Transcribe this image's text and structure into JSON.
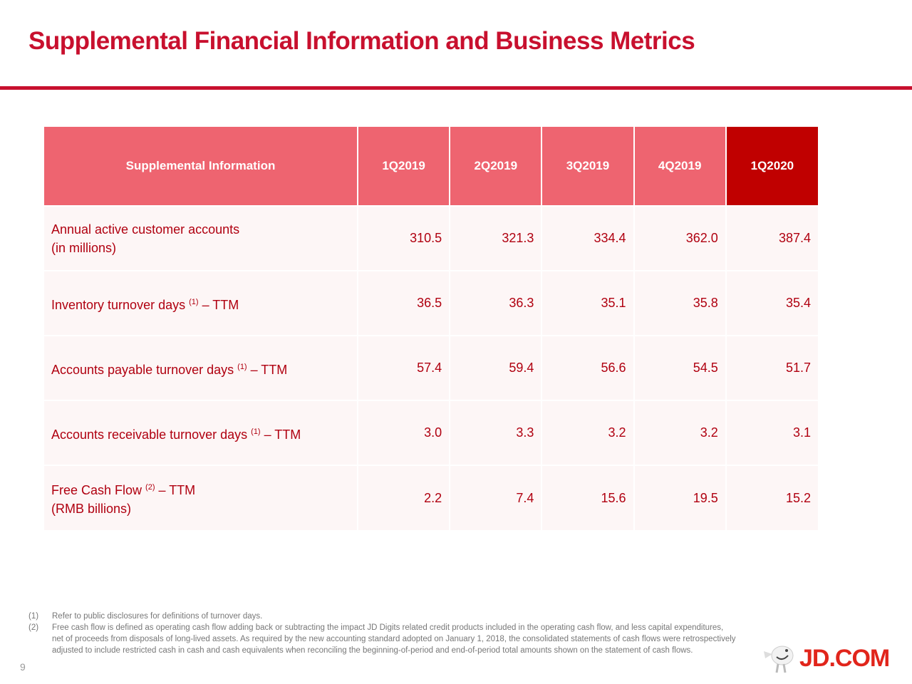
{
  "title": "Supplemental Financial Information and Business Metrics",
  "table": {
    "headers": [
      "Supplemental Information",
      "1Q2019",
      "2Q2019",
      "3Q2019",
      "4Q2019",
      "1Q2020"
    ],
    "rows": [
      {
        "label": "Annual active customer accounts",
        "label2": "(in millions)",
        "sup": "",
        "suffix": "",
        "values": [
          "310.5",
          "321.3",
          "334.4",
          "362.0",
          "387.4"
        ]
      },
      {
        "label": "Inventory turnover days ",
        "label2": "",
        "sup": "(1)",
        "suffix": " – TTM",
        "values": [
          "36.5",
          "36.3",
          "35.1",
          "35.8",
          "35.4"
        ]
      },
      {
        "label": "Accounts payable turnover days ",
        "label2": "",
        "sup": "(1)",
        "suffix": " – TTM",
        "values": [
          "57.4",
          "59.4",
          "56.6",
          "54.5",
          "51.7"
        ]
      },
      {
        "label": "Accounts receivable turnover days ",
        "label2": "",
        "sup": "(1)",
        "suffix": " – TTM",
        "values": [
          "3.0",
          "3.3",
          "3.2",
          "3.2",
          "3.1"
        ]
      },
      {
        "label": "Free Cash Flow ",
        "label2": "(RMB billions)",
        "sup": "(2)",
        "suffix": " – TTM",
        "values": [
          "2.2",
          "7.4",
          "15.6",
          "19.5",
          "15.2"
        ]
      }
    ]
  },
  "footnotes": [
    {
      "num": "(1)",
      "text": "Refer to public disclosures for definitions of turnover days."
    },
    {
      "num": "(2)",
      "text": "Free cash flow is defined as operating cash flow adding back or subtracting the impact JD Digits related credit products included in the operating cash flow, and less capital expenditures, net of proceeds from disposals of long-lived assets. As required by the new accounting standard adopted on January 1, 2018, the consolidated statements of cash flows were retrospectively adjusted to include restricted cash in cash and cash equivalents when reconciling the beginning-of-period and end-of-period total amounts shown on the statement of cash flows."
    }
  ],
  "page_number": "9",
  "logo": {
    "text": "JD.COM",
    "color": "#e1251b"
  },
  "colors": {
    "title": "#c8102e",
    "header": "#ee6470",
    "header_highlight": "#c00000",
    "row_bg": "#fdf6f6"
  }
}
